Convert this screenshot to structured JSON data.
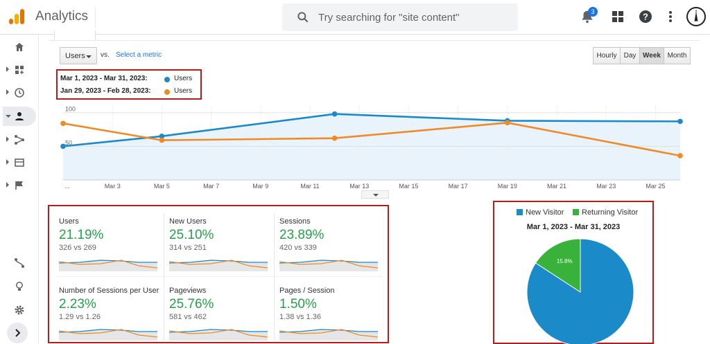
{
  "app": {
    "title": "Analytics"
  },
  "search": {
    "placeholder": "Try searching for \"site content\""
  },
  "header": {
    "notification_count": "3",
    "icons": [
      "notifications-icon",
      "apps-grid-icon",
      "help-icon",
      "more-vert-icon",
      "account-avatar"
    ]
  },
  "nav": {
    "items": [
      {
        "icon": "home-icon",
        "expandable": false
      },
      {
        "icon": "customization-icon",
        "expandable": true
      },
      {
        "icon": "realtime-clock-icon",
        "expandable": true
      },
      {
        "icon": "audience-person-icon",
        "expandable": true,
        "active": true
      },
      {
        "icon": "acquisition-icon",
        "expandable": true
      },
      {
        "icon": "behavior-icon",
        "expandable": true
      },
      {
        "icon": "conversions-flag-icon",
        "expandable": true
      }
    ],
    "bottom": [
      "attribution-icon",
      "discover-lightbulb-icon",
      "admin-gear-icon",
      "expand-nav-chevron-icon"
    ]
  },
  "controls": {
    "metric": "Users",
    "vs": "vs.",
    "select_metric": "Select a metric",
    "time_toggles": [
      "Hourly",
      "Day",
      "Week",
      "Month"
    ],
    "time_active": "Week"
  },
  "legend": [
    {
      "range": "Mar 1, 2023 - Mar 31, 2023:",
      "series": "Users",
      "color": "#1a8ac8"
    },
    {
      "range": "Jan 29, 2023 - Feb 28, 2023:",
      "series": "Users",
      "color": "#ef8a25"
    }
  ],
  "chart_data": {
    "type": "line",
    "x_tick_labels": [
      "...",
      "Mar 3",
      "Mar 5",
      "Mar 7",
      "Mar 9",
      "Mar 11",
      "Mar 13",
      "Mar 15",
      "Mar 17",
      "Mar 19",
      "Mar 21",
      "Mar 23",
      "Mar 25"
    ],
    "x_range": [
      "Mar 1",
      "Mar 26"
    ],
    "y_tick_labels": [
      "100",
      "50"
    ],
    "ylim": [
      0,
      110
    ],
    "grid": true,
    "series": [
      {
        "name": "Users",
        "color": "#1a8ac8",
        "fill": true,
        "x": [
          "Mar 1",
          "Mar 5",
          "Mar 12",
          "Mar 19",
          "Mar 26"
        ],
        "values": [
          50,
          65,
          98,
          88,
          87
        ]
      },
      {
        "name": "Users",
        "color": "#ef8a25",
        "fill": false,
        "x": [
          "Mar 1",
          "Mar 5",
          "Mar 12",
          "Mar 19",
          "Mar 26"
        ],
        "values": [
          84,
          59,
          62,
          85,
          36
        ]
      }
    ]
  },
  "scorecards": [
    {
      "title": "Users",
      "value": "21.19%",
      "compare": "326 vs 269"
    },
    {
      "title": "New Users",
      "value": "25.10%",
      "compare": "314 vs 251"
    },
    {
      "title": "Sessions",
      "value": "23.89%",
      "compare": "420 vs 339"
    },
    {
      "title": "Number of Sessions per User",
      "value": "2.23%",
      "compare": "1.29 vs 1.26"
    },
    {
      "title": "Pageviews",
      "value": "25.76%",
      "compare": "581 vs 462"
    },
    {
      "title": "Pages / Session",
      "value": "1.50%",
      "compare": "1.38 vs 1.36"
    }
  ],
  "pie": {
    "legend": [
      {
        "label": "New Visitor",
        "color": "#1a8ac8"
      },
      {
        "label": "Returning Visitor",
        "color": "#38b23a"
      }
    ],
    "title": "Mar 1, 2023 - Mar 31, 2023",
    "slices": [
      {
        "label": "New Visitor",
        "value": 84.2,
        "text": "84.2%",
        "color": "#1a8ac8"
      },
      {
        "label": "Returning Visitor",
        "value": 15.8,
        "text": "15.8%",
        "color": "#38b23a"
      }
    ]
  }
}
